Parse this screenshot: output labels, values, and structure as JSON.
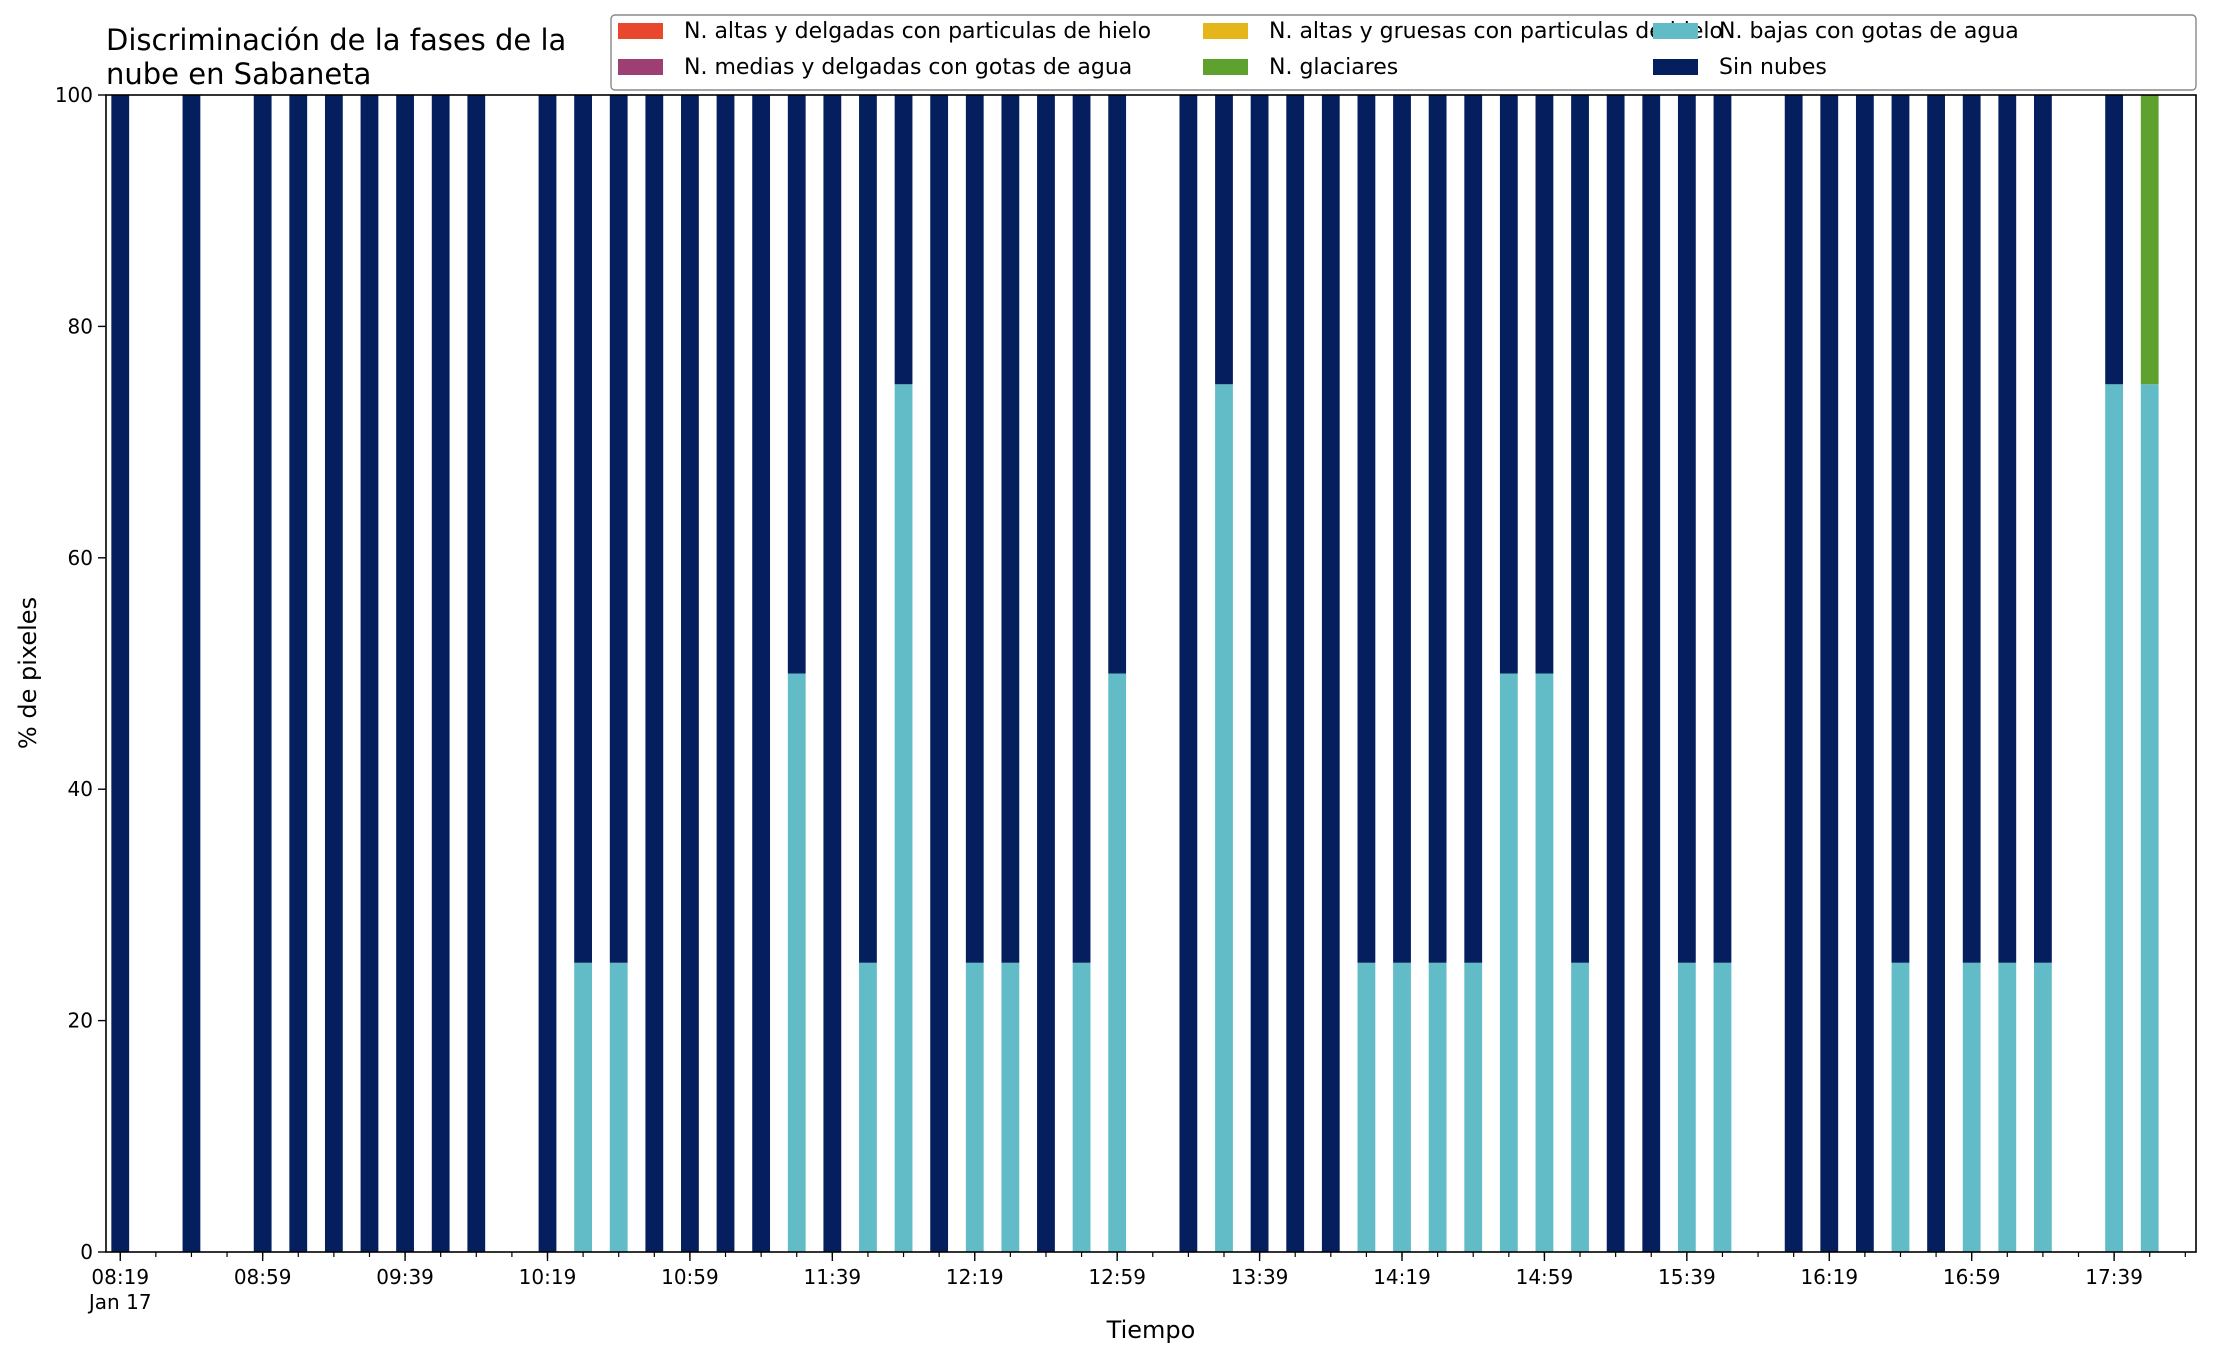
{
  "chart_data": {
    "type": "bar",
    "stacked": true,
    "title_lines": [
      "Discriminación de la fases de la",
      "nube en Sabaneta"
    ],
    "xlabel": "Tiempo",
    "ylabel": "% de pixeles",
    "ylim": [
      0,
      100
    ],
    "yticks": [
      0,
      20,
      40,
      60,
      80,
      100
    ],
    "x_unit": "minutes",
    "xlim": [
      495,
      1082
    ],
    "x_major_ticks": [
      {
        "minute": 499,
        "label": "08:19",
        "sublabel": "Jan 17"
      },
      {
        "minute": 539,
        "label": "08:59"
      },
      {
        "minute": 579,
        "label": "09:39"
      },
      {
        "minute": 619,
        "label": "10:19"
      },
      {
        "minute": 659,
        "label": "10:59"
      },
      {
        "minute": 699,
        "label": "11:39"
      },
      {
        "minute": 739,
        "label": "12:19"
      },
      {
        "minute": 779,
        "label": "12:59"
      },
      {
        "minute": 819,
        "label": "13:39"
      },
      {
        "minute": 859,
        "label": "14:19"
      },
      {
        "minute": 899,
        "label": "14:59"
      },
      {
        "minute": 939,
        "label": "15:39"
      },
      {
        "minute": 979,
        "label": "16:19"
      },
      {
        "minute": 1019,
        "label": "16:59"
      },
      {
        "minute": 1059,
        "label": "17:39"
      }
    ],
    "x_minor_tick_step": 10,
    "x": [
      "08:19",
      "08:39",
      "08:59",
      "09:09",
      "09:19",
      "09:29",
      "09:39",
      "09:49",
      "09:59",
      "10:19",
      "10:29",
      "10:39",
      "10:49",
      "10:59",
      "11:09",
      "11:19",
      "11:29",
      "11:39",
      "11:49",
      "11:59",
      "12:09",
      "12:19",
      "12:29",
      "12:39",
      "12:49",
      "12:59",
      "13:19",
      "13:29",
      "13:39",
      "13:49",
      "13:59",
      "14:09",
      "14:19",
      "14:29",
      "14:39",
      "14:49",
      "14:59",
      "15:09",
      "15:19",
      "15:29",
      "15:39",
      "15:49",
      "16:09",
      "16:19",
      "16:29",
      "16:39",
      "16:49",
      "16:59",
      "17:09",
      "17:19",
      "17:39",
      "17:49"
    ],
    "series": [
      {
        "name": "N. altas y delgadas con particulas de hielo",
        "color": "#e8472e",
        "values": [
          0,
          0,
          0,
          0,
          0,
          0,
          0,
          0,
          0,
          0,
          0,
          0,
          0,
          0,
          0,
          0,
          0,
          0,
          0,
          0,
          0,
          0,
          0,
          0,
          0,
          0,
          0,
          0,
          0,
          0,
          0,
          0,
          0,
          0,
          0,
          0,
          0,
          0,
          0,
          0,
          0,
          0,
          0,
          0,
          0,
          0,
          0,
          0,
          0,
          0,
          0,
          0
        ]
      },
      {
        "name": "N. altas y gruesas con particulas de hielo",
        "color": "#e5b61a",
        "values": [
          0,
          0,
          0,
          0,
          0,
          0,
          0,
          0,
          0,
          0,
          0,
          0,
          0,
          0,
          0,
          0,
          0,
          0,
          0,
          0,
          0,
          0,
          0,
          0,
          0,
          0,
          0,
          0,
          0,
          0,
          0,
          0,
          0,
          0,
          0,
          0,
          0,
          0,
          0,
          0,
          0,
          0,
          0,
          0,
          0,
          0,
          0,
          0,
          0,
          0,
          0,
          0
        ]
      },
      {
        "name": "N. bajas con gotas de agua",
        "color": "#62bcc8",
        "values": [
          0,
          0,
          0,
          0,
          0,
          0,
          0,
          0,
          0,
          0,
          25,
          25,
          0,
          0,
          0,
          0,
          50,
          0,
          25,
          75,
          0,
          25,
          25,
          0,
          25,
          50,
          0,
          75,
          0,
          0,
          0,
          25,
          25,
          25,
          25,
          50,
          50,
          25,
          0,
          0,
          25,
          25,
          0,
          0,
          0,
          25,
          0,
          25,
          25,
          25,
          75,
          75
        ]
      },
      {
        "name": "N. medias y delgadas con gotas de agua",
        "color": "#9e3f74",
        "values": [
          0,
          0,
          0,
          0,
          0,
          0,
          0,
          0,
          0,
          0,
          0,
          0,
          0,
          0,
          0,
          0,
          0,
          0,
          0,
          0,
          0,
          0,
          0,
          0,
          0,
          0,
          0,
          0,
          0,
          0,
          0,
          0,
          0,
          0,
          0,
          0,
          0,
          0,
          0,
          0,
          0,
          0,
          0,
          0,
          0,
          0,
          0,
          0,
          0,
          0,
          0,
          0
        ]
      },
      {
        "name": "N. glaciares",
        "color": "#5fa12f",
        "values": [
          0,
          0,
          0,
          0,
          0,
          0,
          0,
          0,
          0,
          0,
          0,
          0,
          0,
          0,
          0,
          0,
          0,
          0,
          0,
          0,
          0,
          0,
          0,
          0,
          0,
          0,
          0,
          0,
          0,
          0,
          0,
          0,
          0,
          0,
          0,
          0,
          0,
          0,
          0,
          0,
          0,
          0,
          0,
          0,
          0,
          0,
          0,
          0,
          0,
          0,
          0,
          25
        ]
      },
      {
        "name": "Sin nubes",
        "color": "#041e5e",
        "values": [
          100,
          100,
          100,
          100,
          100,
          100,
          100,
          100,
          100,
          100,
          75,
          75,
          100,
          100,
          100,
          100,
          50,
          100,
          75,
          25,
          100,
          75,
          75,
          100,
          75,
          50,
          100,
          25,
          100,
          100,
          100,
          75,
          75,
          75,
          75,
          50,
          50,
          75,
          100,
          100,
          75,
          75,
          100,
          100,
          100,
          75,
          100,
          75,
          75,
          75,
          25,
          0
        ]
      }
    ],
    "legend": {
      "placement": "top-right",
      "columns": 3
    },
    "grid": false
  }
}
